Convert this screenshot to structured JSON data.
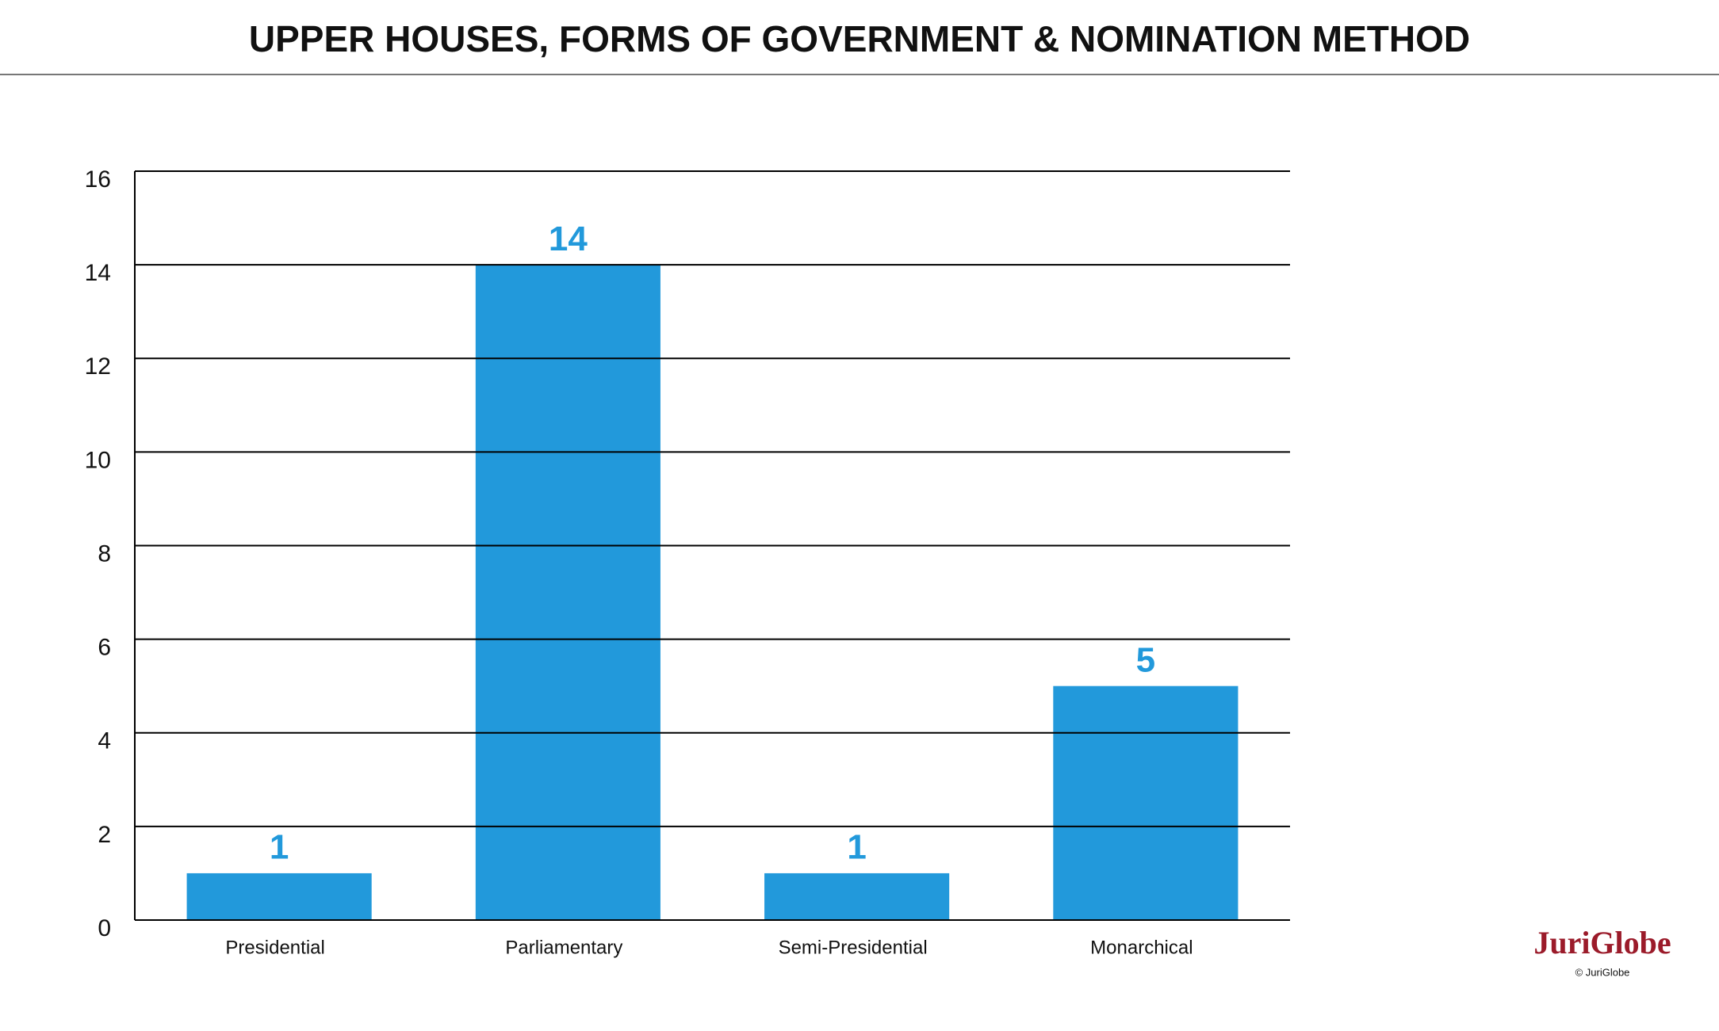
{
  "chart_data": {
    "type": "bar",
    "title": "UPPER HOUSES, FORMS OF GOVERNMENT & NOMINATION METHOD",
    "categories": [
      "Presidential",
      "Parliamentary",
      "Semi-Presidential",
      "Monarchical"
    ],
    "values": [
      1,
      14,
      1,
      5
    ],
    "color": "#2299db",
    "ylim": [
      0,
      16
    ],
    "yticks": [
      0,
      2,
      4,
      6,
      8,
      10,
      12,
      14,
      16
    ],
    "grid": true
  },
  "logo": "JuriGlobe",
  "copyright": "© JuriGlobe"
}
